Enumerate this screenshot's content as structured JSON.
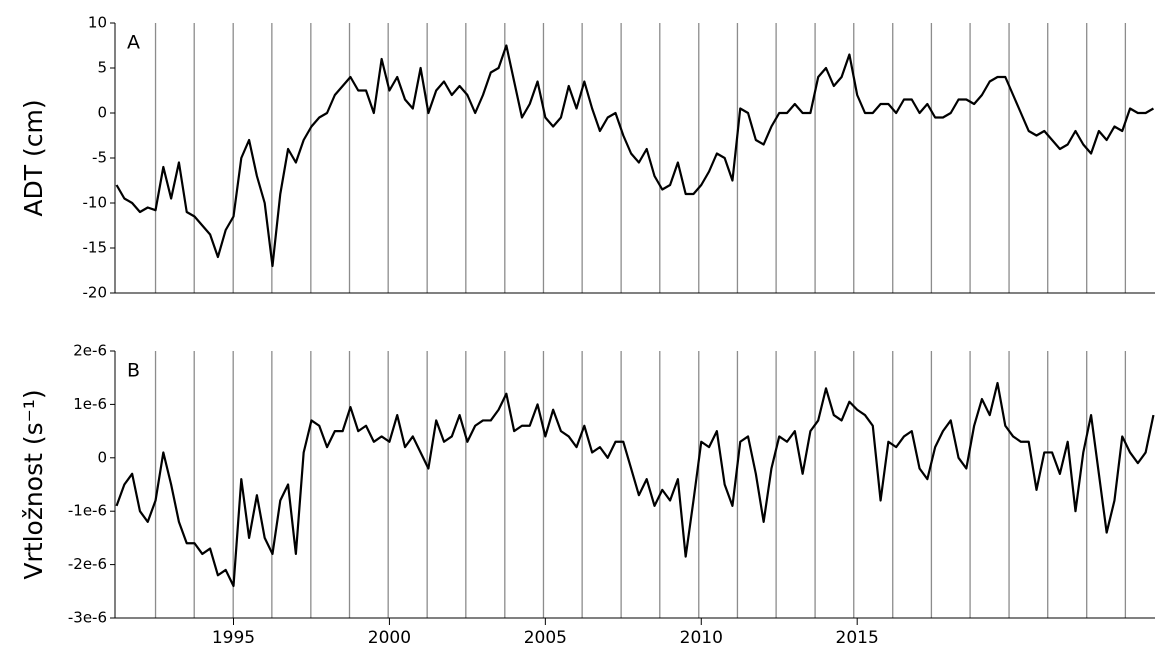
{
  "chart_data": [
    {
      "type": "line",
      "panel_label": "A",
      "ylabel": "ADT (cm)",
      "ylim": [
        -20,
        10
      ],
      "yticks": [
        -20,
        -15,
        -10,
        -5,
        0,
        5,
        10
      ],
      "xlim": [
        1991.2,
        2024.55
      ],
      "event_lines": [
        1992.5,
        1993.74,
        1994.99,
        1996.23,
        1997.48,
        1998.72,
        1999.96,
        2001.21,
        2002.45,
        2003.7,
        2004.94,
        2006.18,
        2007.43,
        2008.67,
        2009.92,
        2011.16,
        2012.4,
        2013.65,
        2014.89,
        2016.14,
        2017.38,
        2018.62,
        2019.87,
        2021.11,
        2022.36,
        2023.6
      ],
      "x": [
        1991.25,
        1991.5,
        1991.75,
        1992,
        1992.25,
        1992.5,
        1992.75,
        1993,
        1993.25,
        1993.5,
        1993.75,
        1994,
        1994.25,
        1994.5,
        1994.75,
        1995,
        1995.25,
        1995.5,
        1995.75,
        1996,
        1996.25,
        1996.5,
        1996.75,
        1997,
        1997.25,
        1997.5,
        1997.75,
        1998,
        1998.25,
        1998.5,
        1998.75,
        1999,
        1999.25,
        1999.5,
        1999.75,
        2000,
        2000.25,
        2000.5,
        2000.75,
        2001,
        2001.25,
        2001.5,
        2001.75,
        2002,
        2002.25,
        2002.5,
        2002.75,
        2003,
        2003.25,
        2003.5,
        2003.75,
        2004,
        2004.25,
        2004.5,
        2004.75,
        2005,
        2005.25,
        2005.5,
        2005.75,
        2006,
        2006.25,
        2006.5,
        2006.75,
        2007,
        2007.25,
        2007.5,
        2007.75,
        2008,
        2008.25,
        2008.5,
        2008.75,
        2009,
        2009.25,
        2009.5,
        2009.75,
        2010,
        2010.25,
        2010.5,
        2010.75,
        2011,
        2011.25,
        2011.5,
        2011.75,
        2012,
        2012.25,
        2012.5,
        2012.75,
        2013,
        2013.25,
        2013.5,
        2013.75,
        2014,
        2014.25,
        2014.5,
        2014.75,
        2015,
        2015.25,
        2015.5,
        2015.75,
        2016,
        2016.25,
        2016.5,
        2016.75,
        2017,
        2017.25,
        2017.5,
        2017.75,
        2018,
        2018.25,
        2018.5,
        2018.75,
        2019,
        2019.25,
        2019.5,
        2019.75,
        2020,
        2020.25,
        2020.5,
        2020.75,
        2021,
        2021.25,
        2021.5,
        2021.75,
        2022,
        2022.25,
        2022.5,
        2022.75,
        2023,
        2023.25,
        2023.5,
        2023.75,
        2024,
        2024.25,
        2024.5
      ],
      "series": [
        {
          "color": "#000000",
          "values": [
            -8,
            -9.5,
            -10,
            -11,
            -10.5,
            -10.8,
            -6,
            -9.5,
            -5.5,
            -11,
            -11.5,
            -12.5,
            -13.5,
            -16,
            -13,
            -11.5,
            -5,
            -3,
            -7,
            -10,
            -17,
            -9,
            -4,
            -5.5,
            -3,
            -1.5,
            -0.5,
            0,
            2,
            3,
            4,
            2.5,
            2.5,
            0,
            6,
            2.5,
            4,
            1.5,
            0.5,
            5,
            0,
            2.5,
            3.5,
            2,
            3,
            2,
            0,
            2,
            4.5,
            5,
            7.5,
            3.5,
            -0.5,
            1,
            3.5,
            -0.5,
            -1.5,
            -0.5,
            3,
            0.5,
            3.5,
            0.5,
            -2,
            -0.5,
            0,
            -2.5,
            -4.5,
            -5.5,
            -4,
            -7,
            -8.5,
            -8,
            -5.5,
            -9,
            -9,
            -8,
            -6.5,
            -4.5,
            -5,
            -7.5,
            0.5,
            0,
            -3,
            -3.5,
            -1.5,
            0,
            0,
            1,
            0,
            0,
            4,
            5,
            3,
            4,
            6.5,
            2,
            0,
            0,
            1,
            1,
            0,
            1.5,
            1.5,
            0,
            1,
            -0.5,
            -0.5,
            0,
            1.5,
            1.5,
            1,
            2,
            3.5,
            4,
            4,
            2,
            0,
            -2,
            -2.5,
            -2,
            -3,
            -4,
            -3.5,
            -2,
            -3.5,
            -4.5,
            -2,
            -3,
            -1.5,
            -2,
            0.5,
            0,
            0,
            0.5
          ]
        }
      ]
    },
    {
      "type": "line",
      "panel_label": "B",
      "ylabel": "Vrtložnost (s⁻¹)",
      "ylim": [
        -3e-06,
        2e-06
      ],
      "yticks": [
        {
          "value": -3e-06,
          "label": "-3e-6"
        },
        {
          "value": -2e-06,
          "label": "-2e-6"
        },
        {
          "value": -1e-06,
          "label": "-1e-6"
        },
        0,
        {
          "value": 1e-06,
          "label": "1e-6"
        },
        {
          "value": 2e-06,
          "label": "2e-6"
        }
      ],
      "xlim": [
        1991.2,
        2024.55
      ],
      "xticks": [
        1995,
        2000,
        2005,
        2010,
        2015
      ],
      "event_lines": [
        1992.5,
        1993.74,
        1994.99,
        1996.23,
        1997.48,
        1998.72,
        1999.96,
        2001.21,
        2002.45,
        2003.7,
        2004.94,
        2006.18,
        2007.43,
        2008.67,
        2009.92,
        2011.16,
        2012.4,
        2013.65,
        2014.89,
        2016.14,
        2017.38,
        2018.62,
        2019.87,
        2021.11,
        2022.36,
        2023.6
      ],
      "x": [
        1991.25,
        1991.5,
        1991.75,
        1992,
        1992.25,
        1992.5,
        1992.75,
        1993,
        1993.25,
        1993.5,
        1993.75,
        1994,
        1994.25,
        1994.5,
        1994.75,
        1995,
        1995.25,
        1995.5,
        1995.75,
        1996,
        1996.25,
        1996.5,
        1996.75,
        1997,
        1997.25,
        1997.5,
        1997.75,
        1998,
        1998.25,
        1998.5,
        1998.75,
        1999,
        1999.25,
        1999.5,
        1999.75,
        2000,
        2000.25,
        2000.5,
        2000.75,
        2001,
        2001.25,
        2001.5,
        2001.75,
        2002,
        2002.25,
        2002.5,
        2002.75,
        2003,
        2003.25,
        2003.5,
        2003.75,
        2004,
        2004.25,
        2004.5,
        2004.75,
        2005,
        2005.25,
        2005.5,
        2005.75,
        2006,
        2006.25,
        2006.5,
        2006.75,
        2007,
        2007.25,
        2007.5,
        2007.75,
        2008,
        2008.25,
        2008.5,
        2008.75,
        2009,
        2009.25,
        2009.5,
        2009.75,
        2010,
        2010.25,
        2010.5,
        2010.75,
        2011,
        2011.25,
        2011.5,
        2011.75,
        2012,
        2012.25,
        2012.5,
        2012.75,
        2013,
        2013.25,
        2013.5,
        2013.75,
        2014,
        2014.25,
        2014.5,
        2014.75,
        2015,
        2015.25,
        2015.5,
        2015.75,
        2016,
        2016.25,
        2016.5,
        2016.75,
        2017,
        2017.25,
        2017.5,
        2017.75,
        2018,
        2018.25,
        2018.5,
        2018.75,
        2019,
        2019.25,
        2019.5,
        2019.75,
        2020,
        2020.25,
        2020.5,
        2020.75,
        2021,
        2021.25,
        2021.5,
        2021.75,
        2022,
        2022.25,
        2022.5,
        2022.75,
        2023,
        2023.25,
        2023.5,
        2023.75,
        2024,
        2024.25,
        2024.5
      ],
      "series": [
        {
          "color": "#000000",
          "values": [
            -9e-07,
            -5e-07,
            -3e-07,
            -1e-06,
            -1.2e-06,
            -8e-07,
            1e-07,
            -5e-07,
            -1.2e-06,
            -1.6e-06,
            -1.6e-06,
            -1.8e-06,
            -1.7e-06,
            -2.2e-06,
            -2.1e-06,
            -2.4e-06,
            -4e-07,
            -1.5e-06,
            -7e-07,
            -1.5e-06,
            -1.8e-06,
            -8e-07,
            -5e-07,
            -1.8e-06,
            1e-07,
            7e-07,
            6e-07,
            2e-07,
            5e-07,
            5e-07,
            9.5e-07,
            5e-07,
            6e-07,
            3e-07,
            4e-07,
            3e-07,
            8e-07,
            2e-07,
            4e-07,
            1e-07,
            -2e-07,
            7e-07,
            3e-07,
            4e-07,
            8e-07,
            3e-07,
            6e-07,
            7e-07,
            7e-07,
            9e-07,
            1.2e-06,
            5e-07,
            6e-07,
            6e-07,
            1e-06,
            4e-07,
            9e-07,
            5e-07,
            4e-07,
            2e-07,
            6e-07,
            1e-07,
            2e-07,
            0,
            3e-07,
            3e-07,
            -2e-07,
            -7e-07,
            -4e-07,
            -9e-07,
            -6e-07,
            -8e-07,
            -4e-07,
            -1.85e-06,
            -8e-07,
            3e-07,
            2e-07,
            5e-07,
            -5e-07,
            -9e-07,
            3e-07,
            4e-07,
            -3e-07,
            -1.2e-06,
            -2e-07,
            4e-07,
            3e-07,
            5e-07,
            -3e-07,
            5e-07,
            7e-07,
            1.3e-06,
            8e-07,
            7e-07,
            1.05e-06,
            9e-07,
            8e-07,
            6e-07,
            -8e-07,
            3e-07,
            2e-07,
            4e-07,
            5e-07,
            -2e-07,
            -4e-07,
            2e-07,
            5e-07,
            7e-07,
            0,
            -2e-07,
            6e-07,
            1.1e-06,
            8e-07,
            1.4e-06,
            6e-07,
            4e-07,
            3e-07,
            3e-07,
            -6e-07,
            1e-07,
            1e-07,
            -3e-07,
            3e-07,
            -1e-06,
            1e-07,
            8e-07,
            -3e-07,
            -1.4e-06,
            -8e-07,
            4e-07,
            1e-07,
            -1e-07,
            1e-07,
            8e-07
          ]
        }
      ]
    }
  ]
}
